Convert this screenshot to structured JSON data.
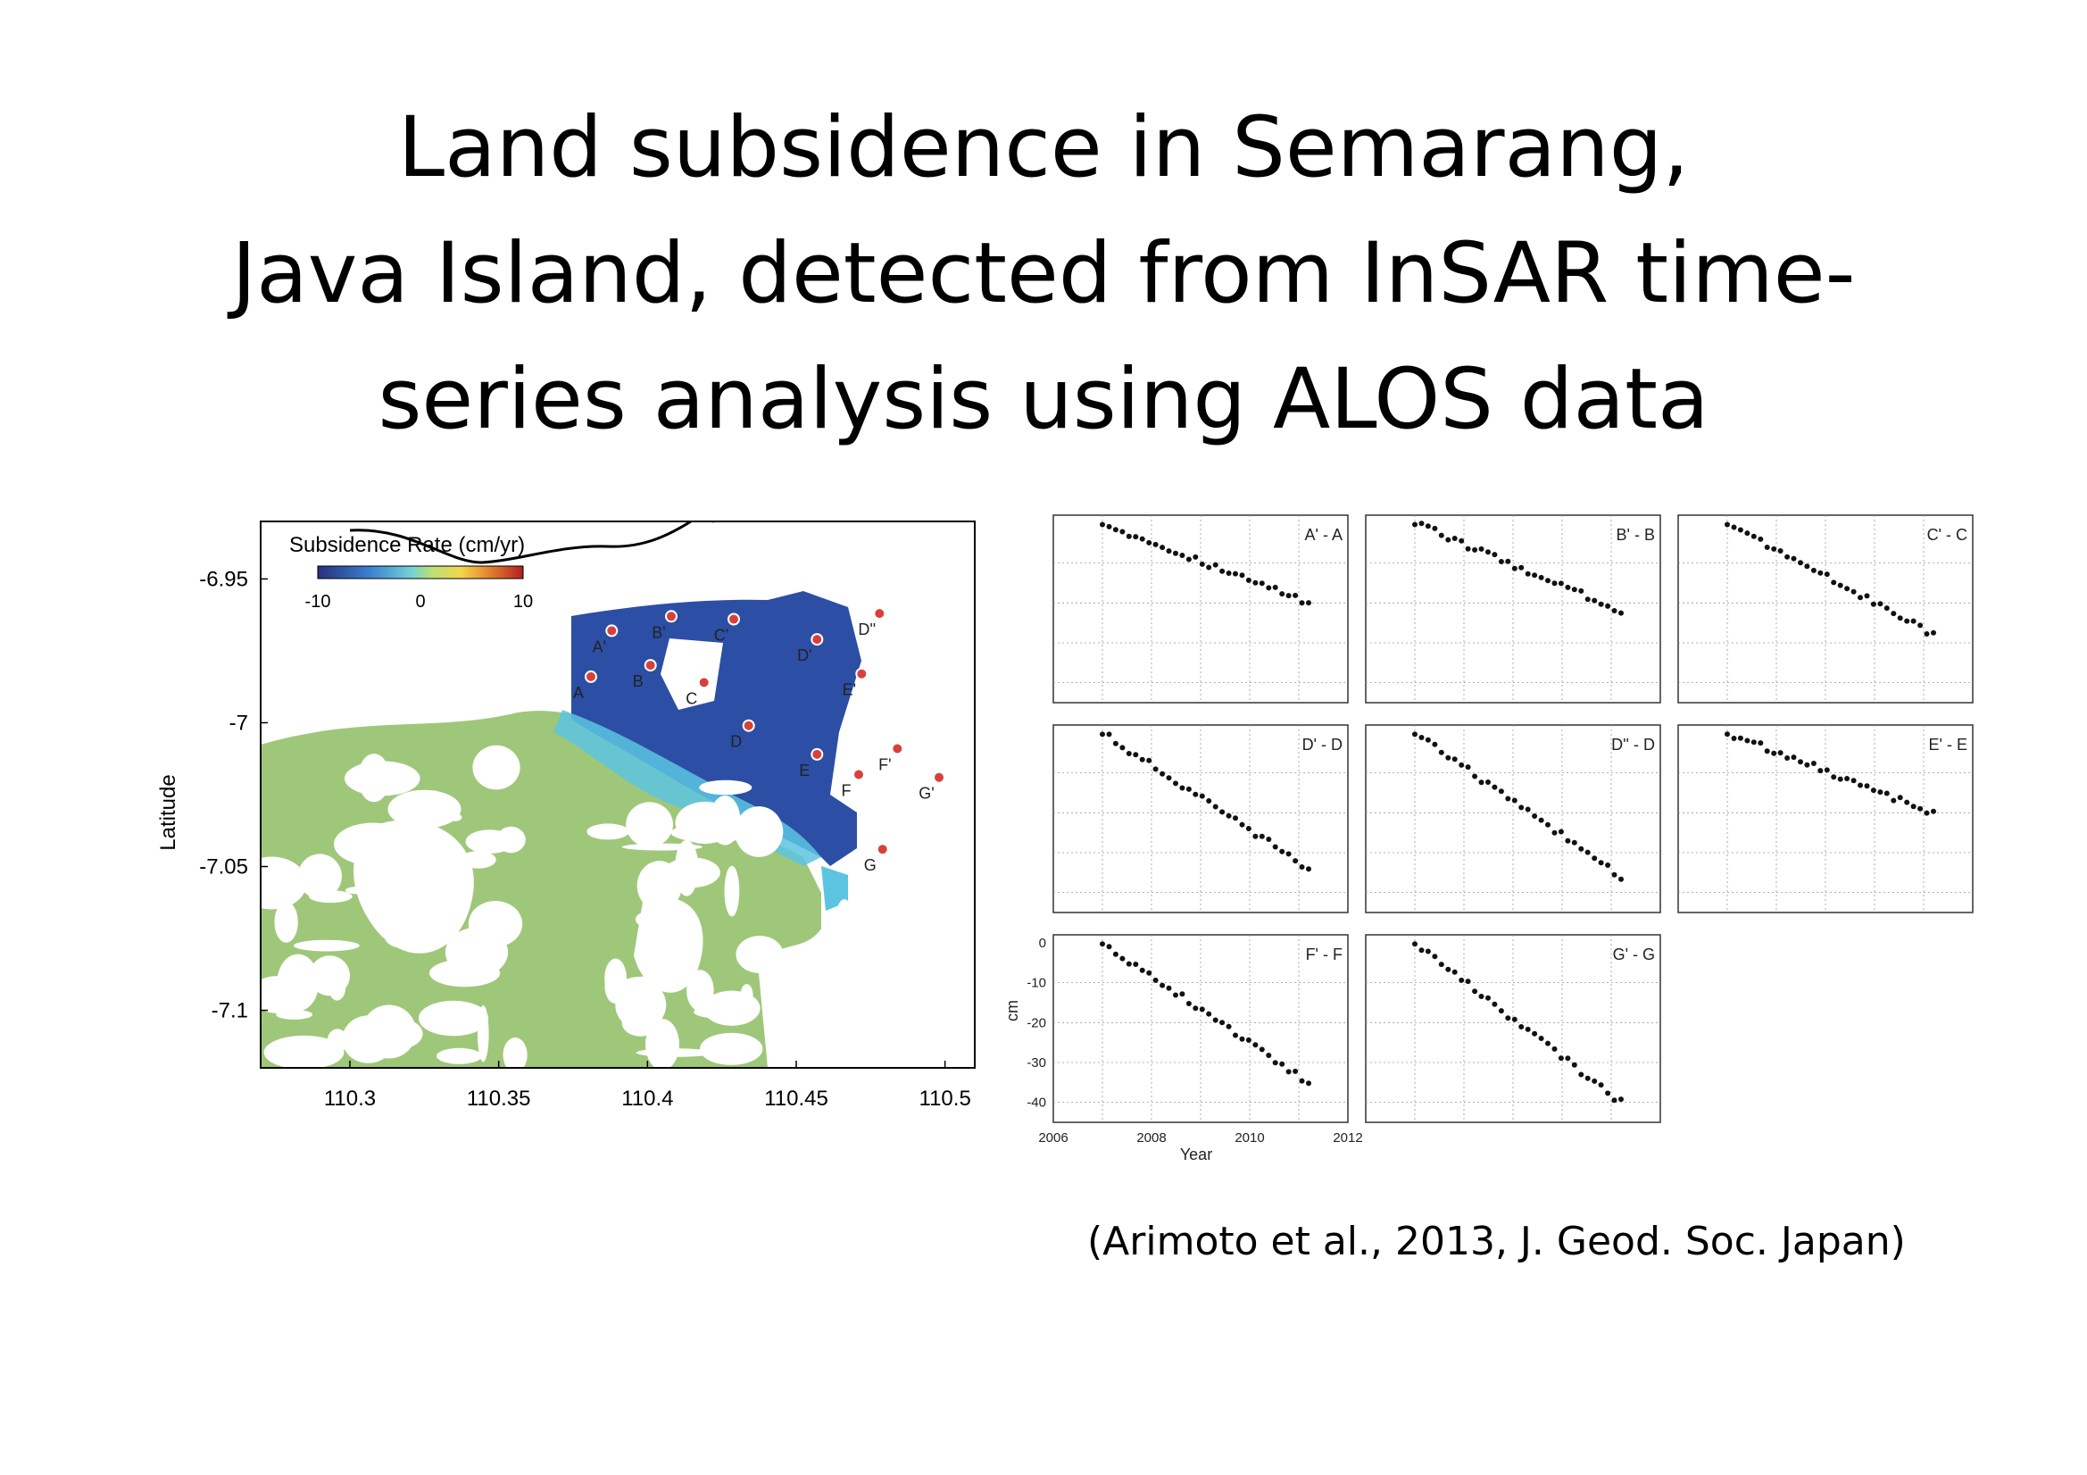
{
  "slide": {
    "title_lines": [
      "Land subsidence in Semarang,",
      "Java Island, detected from InSAR time-",
      "series analysis using ALOS data"
    ],
    "citation": "(Arimoto et al., 2013, J. Geod. Soc. Japan)"
  },
  "colors": {
    "background": "#ffffff",
    "land_green": "#9fc77a",
    "subsidence_blue": "#2c4fa5",
    "transition_cyan": "#5cc4e0",
    "marker_red": "#d8413b",
    "coast_line": "#000000"
  },
  "chart_data": [
    {
      "type": "heatmap",
      "title": "Subsidence Rate (cm/yr)",
      "xlabel": "",
      "ylabel": "Latitude",
      "xlim": [
        110.27,
        110.51
      ],
      "ylim": [
        -7.12,
        -6.93
      ],
      "xticks": [
        "110.3",
        "110.35",
        "110.4",
        "110.45",
        "110.5"
      ],
      "yticks": [
        "-6.95",
        "-7",
        "-7.05",
        "-7.1"
      ],
      "xtick_values": [
        110.3,
        110.35,
        110.4,
        110.45,
        110.5
      ],
      "ytick_values": [
        -6.95,
        -7.0,
        -7.05,
        -7.1
      ],
      "colorbar": {
        "label": "Subsidence Rate (cm/yr)",
        "min": -10,
        "max": 10,
        "ticks": [
          "-10",
          "0",
          "10"
        ]
      },
      "points": [
        {
          "label": "A",
          "lon": 110.381,
          "lat": -6.984
        },
        {
          "label": "A'",
          "lon": 110.388,
          "lat": -6.968
        },
        {
          "label": "B",
          "lon": 110.401,
          "lat": -6.98
        },
        {
          "label": "B'",
          "lon": 110.408,
          "lat": -6.963
        },
        {
          "label": "C",
          "lon": 110.419,
          "lat": -6.986
        },
        {
          "label": "C'",
          "lon": 110.429,
          "lat": -6.964
        },
        {
          "label": "D",
          "lon": 110.434,
          "lat": -7.001
        },
        {
          "label": "D'",
          "lon": 110.457,
          "lat": -6.971
        },
        {
          "label": "D''",
          "lon": 110.478,
          "lat": -6.962
        },
        {
          "label": "E",
          "lon": 110.457,
          "lat": -7.011
        },
        {
          "label": "E'",
          "lon": 110.472,
          "lat": -6.983
        },
        {
          "label": "F",
          "lon": 110.471,
          "lat": -7.018
        },
        {
          "label": "F'",
          "lon": 110.484,
          "lat": -7.009
        },
        {
          "label": "G",
          "lon": 110.479,
          "lat": -7.044
        },
        {
          "label": "G'",
          "lon": 110.498,
          "lat": -7.019
        }
      ]
    },
    {
      "type": "scatter",
      "xlabel": "Year",
      "ylabel": "cm",
      "xlim": [
        2006,
        2012
      ],
      "ylim": [
        -45,
        2
      ],
      "xticks": [
        "2006",
        "2008",
        "2010",
        "2012"
      ],
      "yticks": [
        "0",
        "-10",
        "-20",
        "-30",
        "-40"
      ],
      "panels": [
        {
          "name": "A' - A",
          "x_start": 2007.0,
          "x_end": 2011.2,
          "y_start": 0,
          "y_end": -20,
          "n": 32
        },
        {
          "name": "B' - B",
          "x_start": 2007.0,
          "x_end": 2011.2,
          "y_start": 0,
          "y_end": -22,
          "n": 32
        },
        {
          "name": "C' - C",
          "x_start": 2007.0,
          "x_end": 2011.2,
          "y_start": 0,
          "y_end": -28,
          "n": 32
        },
        {
          "name": "D' - D",
          "x_start": 2007.0,
          "x_end": 2011.2,
          "y_start": 0,
          "y_end": -34,
          "n": 32
        },
        {
          "name": "D'' - D",
          "x_start": 2007.0,
          "x_end": 2011.2,
          "y_start": 0,
          "y_end": -36,
          "n": 32
        },
        {
          "name": "E' - E",
          "x_start": 2007.0,
          "x_end": 2011.2,
          "y_start": 0,
          "y_end": -20,
          "n": 32
        },
        {
          "name": "F' - F",
          "x_start": 2007.0,
          "x_end": 2011.2,
          "y_start": 0,
          "y_end": -35,
          "n": 32
        },
        {
          "name": "G' - G",
          "x_start": 2007.0,
          "x_end": 2011.2,
          "y_start": 0,
          "y_end": -40,
          "n": 32
        }
      ]
    }
  ]
}
